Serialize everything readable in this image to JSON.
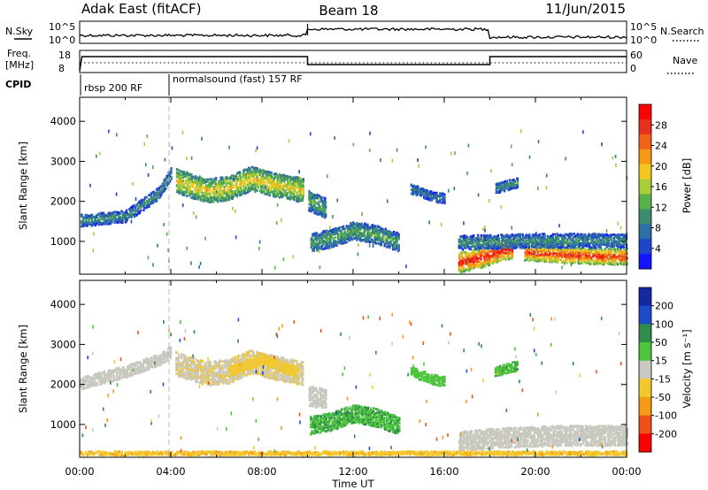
{
  "header": {
    "station": "Adak East (fitACF)",
    "beam": "Beam 18",
    "date": "11/Jun/2015"
  },
  "top_panels": {
    "nsky_label": "N.Sky",
    "nsearch_label": "N.Search",
    "noise_ticks": [
      "10^5",
      "10^0"
    ],
    "freq_label_1": "Freq.",
    "freq_label_2": "[MHz]",
    "freq_ticks": [
      "18",
      "8"
    ],
    "nave_label": "Nave",
    "nave_ticks": [
      "60",
      "0"
    ],
    "cpid_label": "CPID",
    "cpid_segments": [
      {
        "label": "rbsp 200 RF",
        "start_h": 0,
        "end_h": 4
      },
      {
        "label": "normalsound (fast) 157 RF",
        "start_h": 4,
        "end_h": 24
      }
    ]
  },
  "chart_data": [
    {
      "type": "heatmap",
      "name": "power",
      "ylabel": "Slant Range [km]",
      "xlabel": "Time UT",
      "x_ticks": [
        "00:00",
        "04:00",
        "08:00",
        "12:00",
        "16:00",
        "20:00",
        "00:00"
      ],
      "xlim_hours": [
        0,
        24
      ],
      "y_ticks": [
        1000,
        2000,
        3000,
        4000
      ],
      "ylim": [
        180,
        4600
      ],
      "colorbar": {
        "label": "Power [dB]",
        "ticks": [
          "4",
          "8",
          "12",
          "16",
          "20",
          "24",
          "28"
        ],
        "colors": [
          "#1414ff",
          "#1e46c8",
          "#2f6fa8",
          "#3c8c6e",
          "#58b04a",
          "#a8cc3a",
          "#f2c81e",
          "#f59a14",
          "#f0641a",
          "#e8301e",
          "#ff0000"
        ]
      },
      "echo_regions": [
        {
          "t0": 4.2,
          "t1": 9.8,
          "curve": [
            [
              4.2,
              2500
            ],
            [
              5.5,
              2250
            ],
            [
              6.5,
              2300
            ],
            [
              7.5,
              2550
            ],
            [
              8.5,
              2400
            ],
            [
              9.8,
              2250
            ]
          ],
          "width": 600,
          "value": 18
        },
        {
          "t0": 10.1,
          "t1": 14.0,
          "curve": [
            [
              10.1,
              950
            ],
            [
              11.0,
              1050
            ],
            [
              12.0,
              1250
            ],
            [
              13.0,
              1150
            ],
            [
              14.0,
              950
            ]
          ],
          "width": 450,
          "value": 12
        },
        {
          "t0": 16.6,
          "t1": 19.0,
          "curve": [
            [
              16.6,
              450
            ],
            [
              17.5,
              550
            ],
            [
              18.5,
              750
            ],
            [
              19.0,
              800
            ]
          ],
          "width": 500,
          "value": 28
        },
        {
          "t0": 19.5,
          "t1": 24.0,
          "curve": [
            [
              19.5,
              700
            ],
            [
              21.0,
              650
            ],
            [
              23.0,
              600
            ],
            [
              24.0,
              600
            ]
          ],
          "width": 400,
          "value": 26
        },
        {
          "t0": 16.6,
          "t1": 24.0,
          "curve": [
            [
              16.6,
              950
            ],
            [
              20.0,
              1000
            ],
            [
              24.0,
              1000
            ]
          ],
          "width": 350,
          "value": 10
        },
        {
          "t0": 0.0,
          "t1": 4.0,
          "curve": [
            [
              0.0,
              1500
            ],
            [
              2.0,
              1600
            ],
            [
              3.5,
              2200
            ],
            [
              4.0,
              2700
            ]
          ],
          "width": 300,
          "value": 10
        },
        {
          "t0": 14.5,
          "t1": 16.0,
          "curve": [
            [
              14.5,
              2300
            ],
            [
              15.5,
              2100
            ],
            [
              16.0,
              2050
            ]
          ],
          "width": 250,
          "value": 8
        },
        {
          "t0": 18.2,
          "t1": 19.2,
          "curve": [
            [
              18.2,
              2300
            ],
            [
              19.2,
              2450
            ]
          ],
          "width": 250,
          "value": 10
        },
        {
          "t0": 10.0,
          "t1": 10.8,
          "curve": [
            [
              10.0,
              2000
            ],
            [
              10.8,
              1800
            ]
          ],
          "width": 500,
          "value": 12
        }
      ]
    },
    {
      "type": "heatmap",
      "name": "velocity",
      "ylabel": "Slant Range [km]",
      "xlabel": "Time UT",
      "x_ticks": [
        "00:00",
        "04:00",
        "08:00",
        "12:00",
        "16:00",
        "20:00",
        "00:00"
      ],
      "xlim_hours": [
        0,
        24
      ],
      "y_ticks": [
        1000,
        2000,
        3000,
        4000
      ],
      "ylim": [
        180,
        4600
      ],
      "colorbar": {
        "label": "Velocity [m s⁻¹]",
        "ticks": [
          "200",
          "100",
          "50",
          "15",
          "-15",
          "-50",
          "-100",
          "-200"
        ],
        "colors": [
          "#1428a0",
          "#1e4cc8",
          "#2f8c4a",
          "#4cc43c",
          "#c8c8c0",
          "#f2c82e",
          "#f59a14",
          "#f0501a",
          "#ff0000"
        ]
      },
      "echo_regions": [
        {
          "t0": 4.2,
          "t1": 9.8,
          "curve": [
            [
              4.2,
              2500
            ],
            [
              5.5,
              2250
            ],
            [
              6.5,
              2300
            ],
            [
              7.5,
              2550
            ],
            [
              8.5,
              2400
            ],
            [
              9.8,
              2250
            ]
          ],
          "width": 600,
          "value": -10
        },
        {
          "t0": 6.5,
          "t1": 9.5,
          "curve": [
            [
              6.5,
              2300
            ],
            [
              8.0,
              2600
            ],
            [
              9.5,
              2300
            ]
          ],
          "width": 250,
          "value": -30
        },
        {
          "t0": 10.1,
          "t1": 14.0,
          "curve": [
            [
              10.1,
              950
            ],
            [
              11.0,
              1050
            ],
            [
              12.0,
              1250
            ],
            [
              13.0,
              1150
            ],
            [
              14.0,
              950
            ]
          ],
          "width": 450,
          "value": 45
        },
        {
          "t0": 16.6,
          "t1": 24.0,
          "curve": [
            [
              16.6,
              550
            ],
            [
              18.5,
              650
            ],
            [
              21.0,
              700
            ],
            [
              24.0,
              700
            ]
          ],
          "width": 500,
          "value": 0
        },
        {
          "t0": 0.0,
          "t1": 4.0,
          "curve": [
            [
              0.0,
              2000
            ],
            [
              2.0,
              2300
            ],
            [
              3.5,
              2600
            ],
            [
              4.0,
              2800
            ]
          ],
          "width": 300,
          "value": 0
        },
        {
          "t0": 14.5,
          "t1": 16.0,
          "curve": [
            [
              14.5,
              2300
            ],
            [
              15.5,
              2100
            ],
            [
              16.0,
              2050
            ]
          ],
          "width": 250,
          "value": 30
        },
        {
          "t0": 18.2,
          "t1": 19.2,
          "curve": [
            [
              18.2,
              2300
            ],
            [
              19.2,
              2450
            ]
          ],
          "width": 250,
          "value": 40
        },
        {
          "t0": 10.0,
          "t1": 10.8,
          "curve": [
            [
              10.0,
              1700
            ],
            [
              10.8,
              1600
            ]
          ],
          "width": 500,
          "value": 0
        },
        {
          "t0": 0.0,
          "t1": 24.0,
          "curve": [
            [
              0.0,
              250
            ],
            [
              24.0,
              250
            ]
          ],
          "width": 120,
          "value": -40
        }
      ]
    }
  ]
}
